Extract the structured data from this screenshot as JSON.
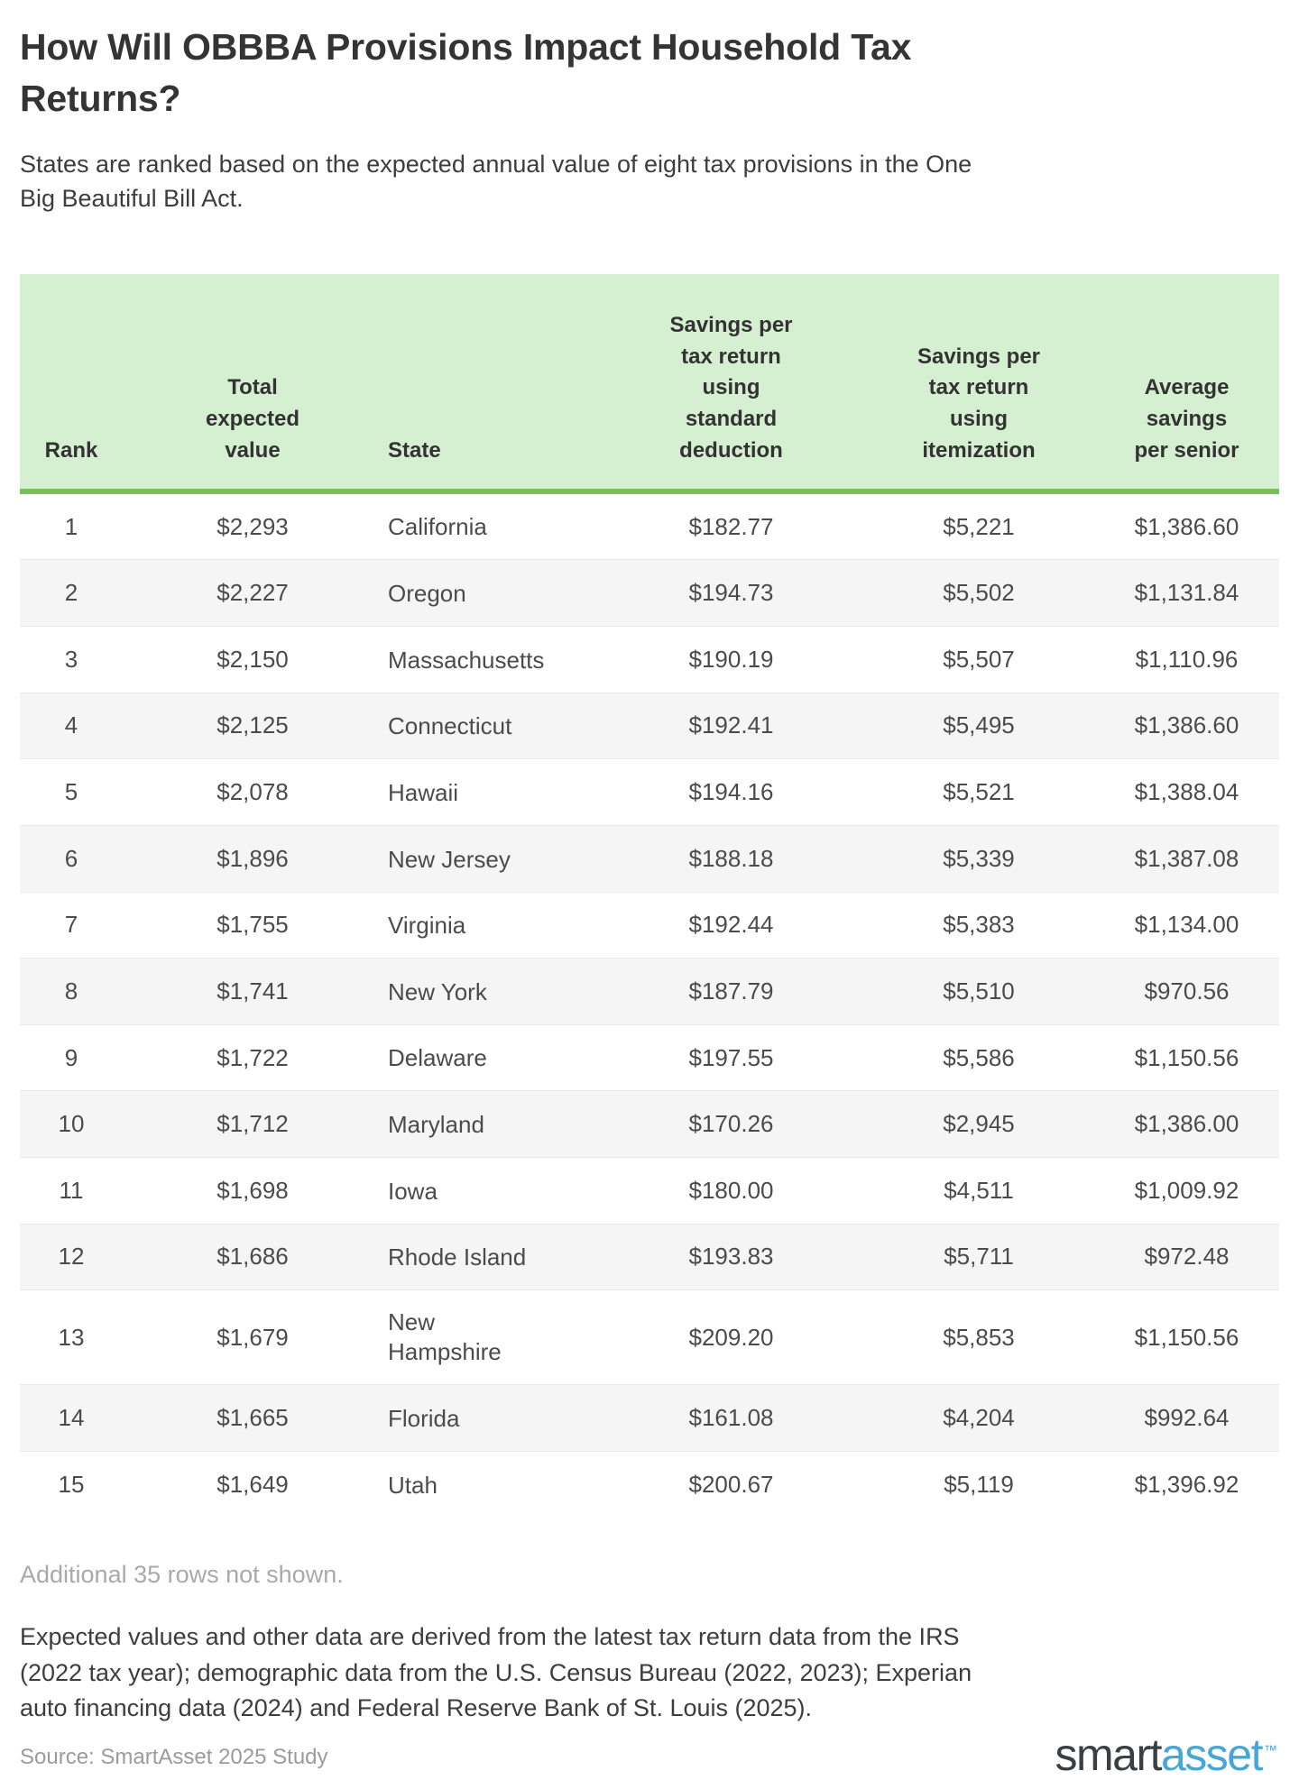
{
  "chart_data": {
    "type": "table",
    "title": "How Will OBBBA Provisions Impact Household Tax Returns?",
    "subtitle": "States are ranked based on the expected annual value of eight tax provisions in the One Big Beautiful Bill Act.",
    "columns": [
      "Rank",
      "Total expected value",
      "State",
      "Savings per tax return using standard deduction",
      "Savings per tax return using itemization",
      "Average savings per senior"
    ],
    "rows": [
      {
        "rank": "1",
        "total_expected_value": "$2,293",
        "state": "California",
        "savings_standard_deduction": "$182.77",
        "savings_itemization": "$5,221",
        "avg_savings_per_senior": "$1,386.60"
      },
      {
        "rank": "2",
        "total_expected_value": "$2,227",
        "state": "Oregon",
        "savings_standard_deduction": "$194.73",
        "savings_itemization": "$5,502",
        "avg_savings_per_senior": "$1,131.84"
      },
      {
        "rank": "3",
        "total_expected_value": "$2,150",
        "state": "Massachusetts",
        "savings_standard_deduction": "$190.19",
        "savings_itemization": "$5,507",
        "avg_savings_per_senior": "$1,110.96"
      },
      {
        "rank": "4",
        "total_expected_value": "$2,125",
        "state": "Connecticut",
        "savings_standard_deduction": "$192.41",
        "savings_itemization": "$5,495",
        "avg_savings_per_senior": "$1,386.60"
      },
      {
        "rank": "5",
        "total_expected_value": "$2,078",
        "state": "Hawaii",
        "savings_standard_deduction": "$194.16",
        "savings_itemization": "$5,521",
        "avg_savings_per_senior": "$1,388.04"
      },
      {
        "rank": "6",
        "total_expected_value": "$1,896",
        "state": "New Jersey",
        "savings_standard_deduction": "$188.18",
        "savings_itemization": "$5,339",
        "avg_savings_per_senior": "$1,387.08"
      },
      {
        "rank": "7",
        "total_expected_value": "$1,755",
        "state": "Virginia",
        "savings_standard_deduction": "$192.44",
        "savings_itemization": "$5,383",
        "avg_savings_per_senior": "$1,134.00"
      },
      {
        "rank": "8",
        "total_expected_value": "$1,741",
        "state": "New York",
        "savings_standard_deduction": "$187.79",
        "savings_itemization": "$5,510",
        "avg_savings_per_senior": "$970.56"
      },
      {
        "rank": "9",
        "total_expected_value": "$1,722",
        "state": "Delaware",
        "savings_standard_deduction": "$197.55",
        "savings_itemization": "$5,586",
        "avg_savings_per_senior": "$1,150.56"
      },
      {
        "rank": "10",
        "total_expected_value": "$1,712",
        "state": "Maryland",
        "savings_standard_deduction": "$170.26",
        "savings_itemization": "$2,945",
        "avg_savings_per_senior": "$1,386.00"
      },
      {
        "rank": "11",
        "total_expected_value": "$1,698",
        "state": "Iowa",
        "savings_standard_deduction": "$180.00",
        "savings_itemization": "$4,511",
        "avg_savings_per_senior": "$1,009.92"
      },
      {
        "rank": "12",
        "total_expected_value": "$1,686",
        "state": "Rhode Island",
        "savings_standard_deduction": "$193.83",
        "savings_itemization": "$5,711",
        "avg_savings_per_senior": "$972.48"
      },
      {
        "rank": "13",
        "total_expected_value": "$1,679",
        "state": "New Hampshire",
        "savings_standard_deduction": "$209.20",
        "savings_itemization": "$5,853",
        "avg_savings_per_senior": "$1,150.56"
      },
      {
        "rank": "14",
        "total_expected_value": "$1,665",
        "state": "Florida",
        "savings_standard_deduction": "$161.08",
        "savings_itemization": "$4,204",
        "avg_savings_per_senior": "$992.64"
      },
      {
        "rank": "15",
        "total_expected_value": "$1,649",
        "state": "Utah",
        "savings_standard_deduction": "$200.67",
        "savings_itemization": "$5,119",
        "avg_savings_per_senior": "$1,396.92"
      }
    ],
    "additional_note": "Additional 35 rows not shown.",
    "methodology_lines": [
      "Expected values and other data are derived from the latest tax return data from the IRS",
      "(2022 tax year); demographic data from the U.S. Census Bureau (2022, 2023); Experian",
      "auto financing data (2024) and Federal Reserve Bank of St. Louis (2025)."
    ],
    "source": "Source: SmartAsset 2025 Study"
  },
  "logo": {
    "smart": "smart",
    "asset": "asset",
    "trademark": "™"
  },
  "colors": {
    "header_bg": "#d5f0d0",
    "header_border": "#77c158",
    "row_stripe": "#f5f5f5",
    "logo_dark": "#3a3f43",
    "logo_blue": "#45a7d7"
  }
}
